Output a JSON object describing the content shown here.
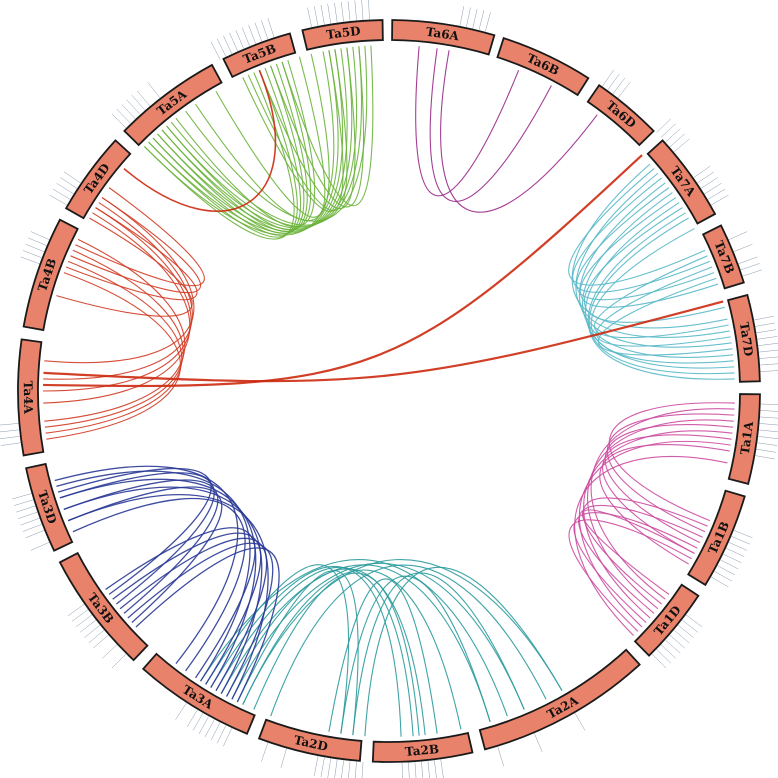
{
  "chromosomes": [
    {
      "label": "Ta1A"
    },
    {
      "label": "Ta1B"
    },
    {
      "label": "Ta1D"
    },
    {
      "label": "Ta2A"
    },
    {
      "label": "Ta2B"
    },
    {
      "label": "Ta2D"
    },
    {
      "label": "Ta3A"
    },
    {
      "label": "Ta3B"
    },
    {
      "label": "Ta3D"
    },
    {
      "label": "Ta4A"
    },
    {
      "label": "Ta4B"
    },
    {
      "label": "Ta4D"
    },
    {
      "label": "Ta5A"
    },
    {
      "label": "Ta5B"
    },
    {
      "label": "Ta5D"
    },
    {
      "label": "Ta6A"
    },
    {
      "label": "Ta6B"
    },
    {
      "label": "Ta6D"
    },
    {
      "label": "Ta7A"
    },
    {
      "label": "Ta7B"
    },
    {
      "label": "Ta7D"
    }
  ],
  "colors": {
    "chromosome_fill": "#e8826a",
    "chromosome_stroke": "#1a1a1a",
    "tick": "#5a6e8c",
    "group1": "#cc4aa0",
    "group2": "#2a9a9c",
    "group3": "#2a3a96",
    "group4": "#d23a22",
    "group5": "#6ab23a",
    "group6": "#9a2a8a",
    "group7": "#58b8c8",
    "cross": "#cc2a10"
  }
}
